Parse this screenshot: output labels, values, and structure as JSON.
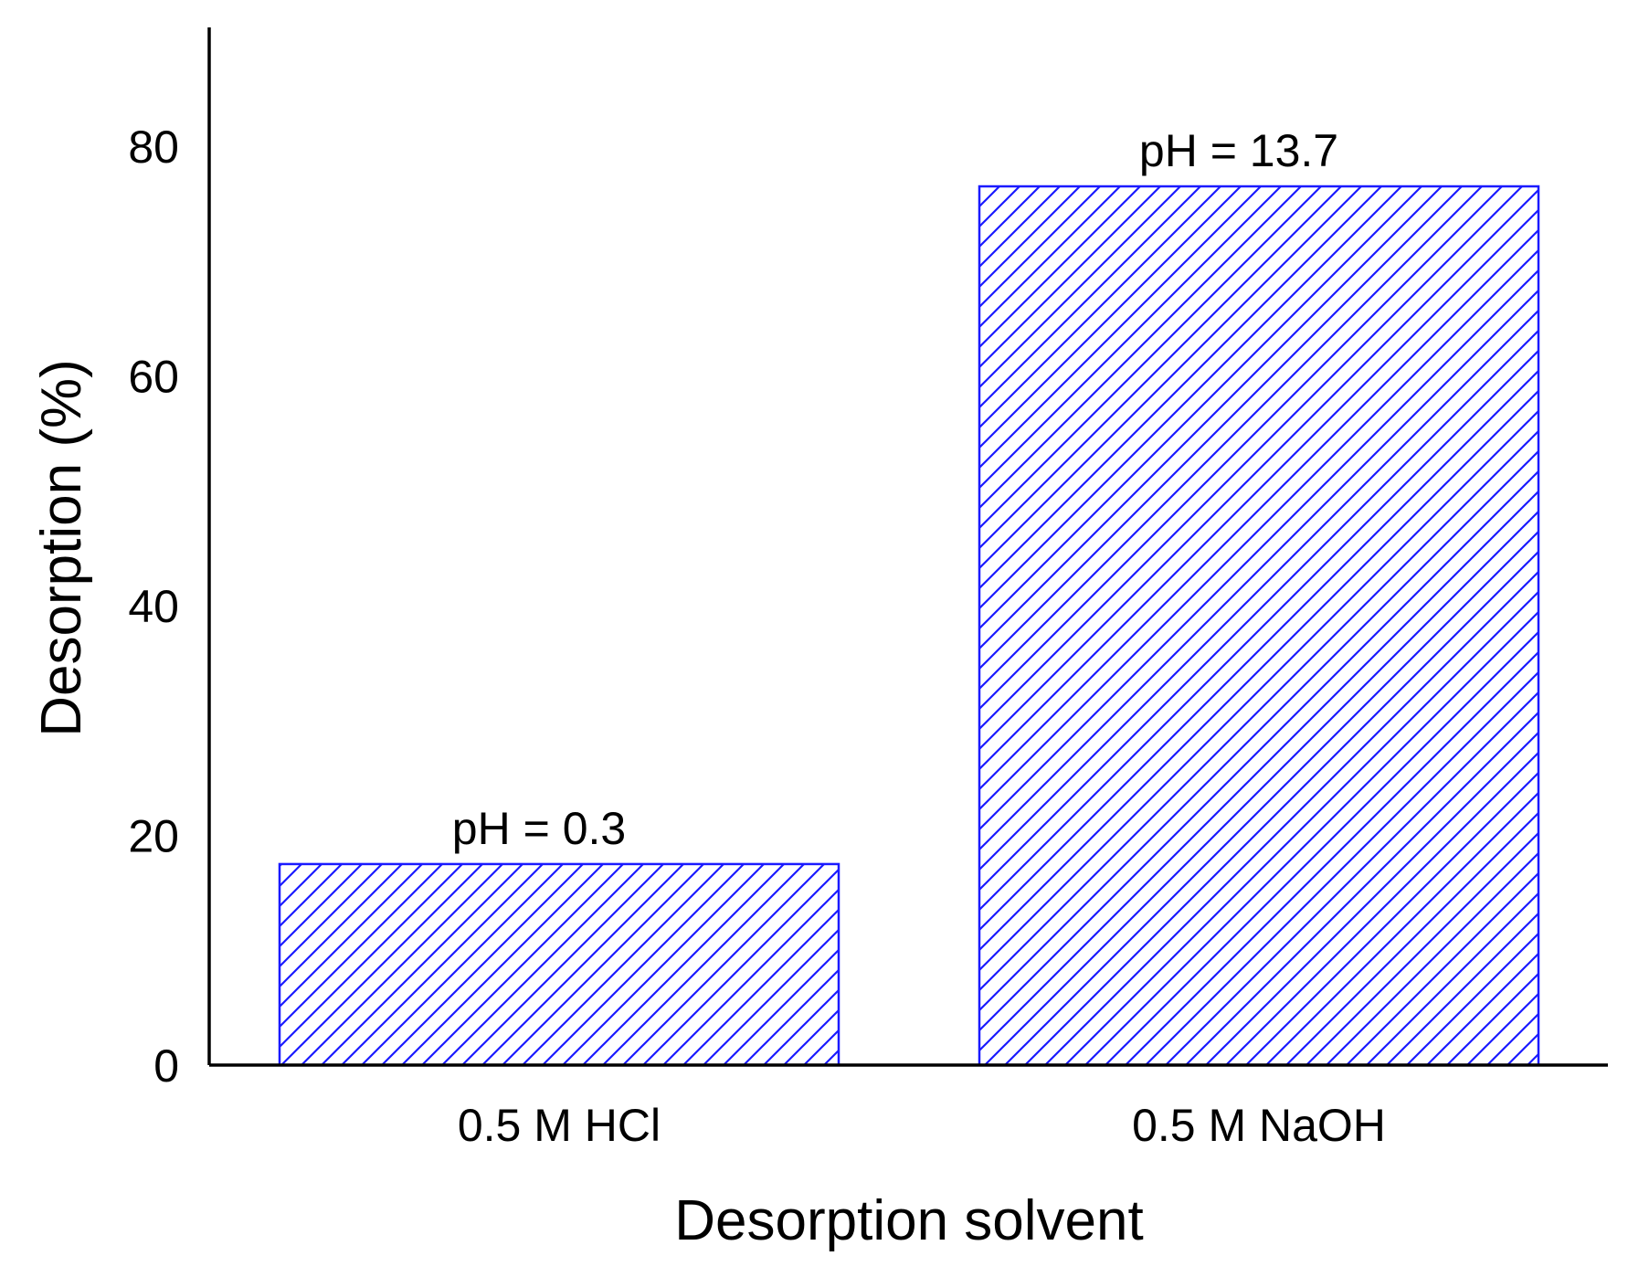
{
  "chart_data": {
    "type": "bar",
    "categories": [
      "0.5 M HCl",
      "0.5 M NaOH"
    ],
    "values": [
      17.5,
      76.5
    ],
    "data_labels": [
      "pH = 0.3",
      "pH = 13.7"
    ],
    "xlabel": "Desorption solvent",
    "ylabel": "Desorption (%)",
    "ylim": [
      0,
      90
    ],
    "yticks": [
      0,
      20,
      40,
      60,
      80
    ],
    "grid": false,
    "bar_style": "diagonal hatch",
    "colors": {
      "bar_stroke": "#1a1aff",
      "hatch": "#1a1aff",
      "bar_fill": "#ffffff",
      "axis": "#000000"
    }
  }
}
